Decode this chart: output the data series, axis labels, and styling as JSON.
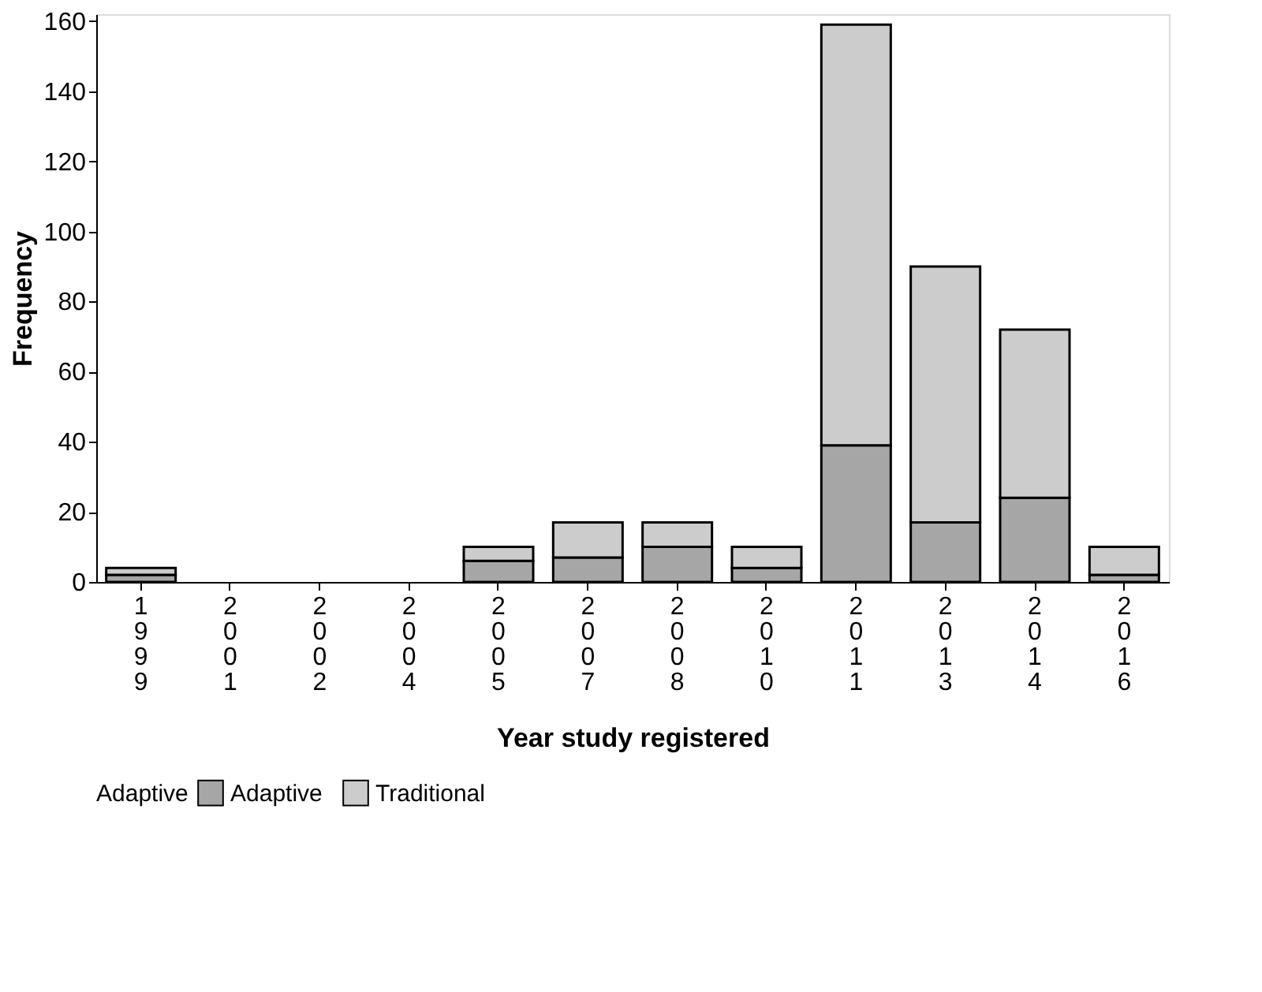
{
  "chart_data": {
    "type": "bar",
    "stacked": true,
    "xlabel": "Year study registered",
    "ylabel": "Frequency",
    "legend_title": "Adaptive",
    "legend": "bottom",
    "categories": [
      "1999",
      "2001",
      "2002",
      "2004",
      "2005",
      "2007",
      "2008",
      "2010",
      "2011",
      "2013",
      "2014",
      "2016"
    ],
    "series": [
      {
        "name": "Adaptive",
        "color": "#a6a6a6",
        "values": [
          2,
          0,
          0,
          0,
          6,
          7,
          10,
          4,
          39,
          17,
          24,
          2
        ]
      },
      {
        "name": "Traditional",
        "color": "#cccccc",
        "values": [
          2,
          0,
          0,
          0,
          4,
          10,
          7,
          6,
          120,
          73,
          48,
          8
        ]
      }
    ],
    "ylim": [
      0,
      162
    ],
    "yticks": [
      0,
      20,
      40,
      60,
      80,
      100,
      120,
      140,
      160
    ],
    "grid": false
  }
}
